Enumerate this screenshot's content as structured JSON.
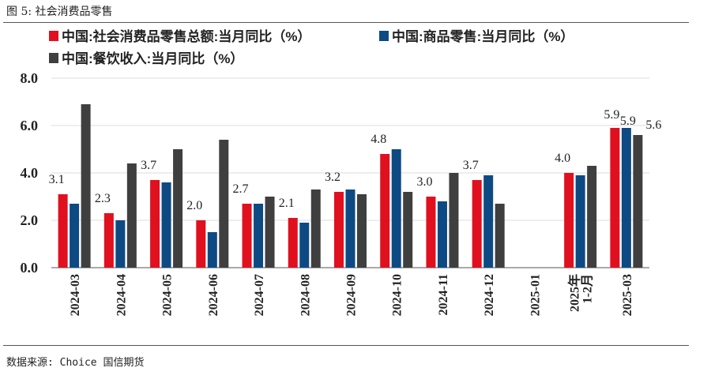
{
  "figure": {
    "title": "图 5: 社会消费品零售",
    "source": "数据来源: Choice   国信期货"
  },
  "chart_data": {
    "type": "bar",
    "categories": [
      "2024-03",
      "2024-04",
      "2024-05",
      "2024-06",
      "2024-07",
      "2024-08",
      "2024-09",
      "2024-10",
      "2024-11",
      "2024-12",
      "2025-01",
      "2025年1-2月",
      "2025-03"
    ],
    "category_lines": [
      [
        "2024-03"
      ],
      [
        "2024-04"
      ],
      [
        "2024-05"
      ],
      [
        "2024-06"
      ],
      [
        "2024-07"
      ],
      [
        "2024-08"
      ],
      [
        "2024-09"
      ],
      [
        "2024-10"
      ],
      [
        "2024-11"
      ],
      [
        "2024-12"
      ],
      [
        "2025-01"
      ],
      [
        "2025年",
        "1-2月"
      ],
      [
        "2025-03"
      ]
    ],
    "series": [
      {
        "name": "中国:社会消费品零售总额:当月同比（%）",
        "color": "#e0101f",
        "values": [
          3.1,
          2.3,
          3.7,
          2.0,
          2.7,
          2.1,
          3.2,
          4.8,
          3.0,
          3.7,
          null,
          4.0,
          5.9
        ]
      },
      {
        "name": "中国:商品零售:当月同比（%）",
        "color": "#0d4a84",
        "values": [
          2.7,
          2.0,
          3.6,
          1.5,
          2.7,
          1.9,
          3.3,
          5.0,
          2.8,
          3.9,
          null,
          3.9,
          5.9
        ]
      },
      {
        "name": "中国:餐饮收入:当月同比（%）",
        "color": "#3f3f3f",
        "values": [
          6.9,
          4.4,
          5.0,
          5.4,
          3.0,
          3.3,
          3.1,
          3.2,
          4.0,
          2.7,
          null,
          4.3,
          5.6
        ]
      }
    ],
    "data_labels": [
      {
        "category_index": 0,
        "series_index": 0,
        "text": "3.1"
      },
      {
        "category_index": 1,
        "series_index": 0,
        "text": "2.3"
      },
      {
        "category_index": 2,
        "series_index": 0,
        "text": "3.7"
      },
      {
        "category_index": 3,
        "series_index": 0,
        "text": "2.0"
      },
      {
        "category_index": 4,
        "series_index": 0,
        "text": "2.7"
      },
      {
        "category_index": 5,
        "series_index": 0,
        "text": "2.1"
      },
      {
        "category_index": 6,
        "series_index": 0,
        "text": "3.2"
      },
      {
        "category_index": 7,
        "series_index": 0,
        "text": "4.8"
      },
      {
        "category_index": 8,
        "series_index": 0,
        "text": "3.0"
      },
      {
        "category_index": 9,
        "series_index": 0,
        "text": "3.7"
      },
      {
        "category_index": 11,
        "series_index": 0,
        "text": "4.0"
      },
      {
        "category_index": 12,
        "series_index": 0,
        "text": "5.9"
      },
      {
        "category_index": 12,
        "series_index": 1,
        "text": "5.9"
      },
      {
        "category_index": 12,
        "series_index": 2,
        "text": "5.6"
      }
    ],
    "yticks": [
      "0.0",
      "2.0",
      "4.0",
      "6.0",
      "8.0"
    ],
    "ylim": [
      0,
      8
    ],
    "grid": true,
    "legend_position": "top"
  }
}
